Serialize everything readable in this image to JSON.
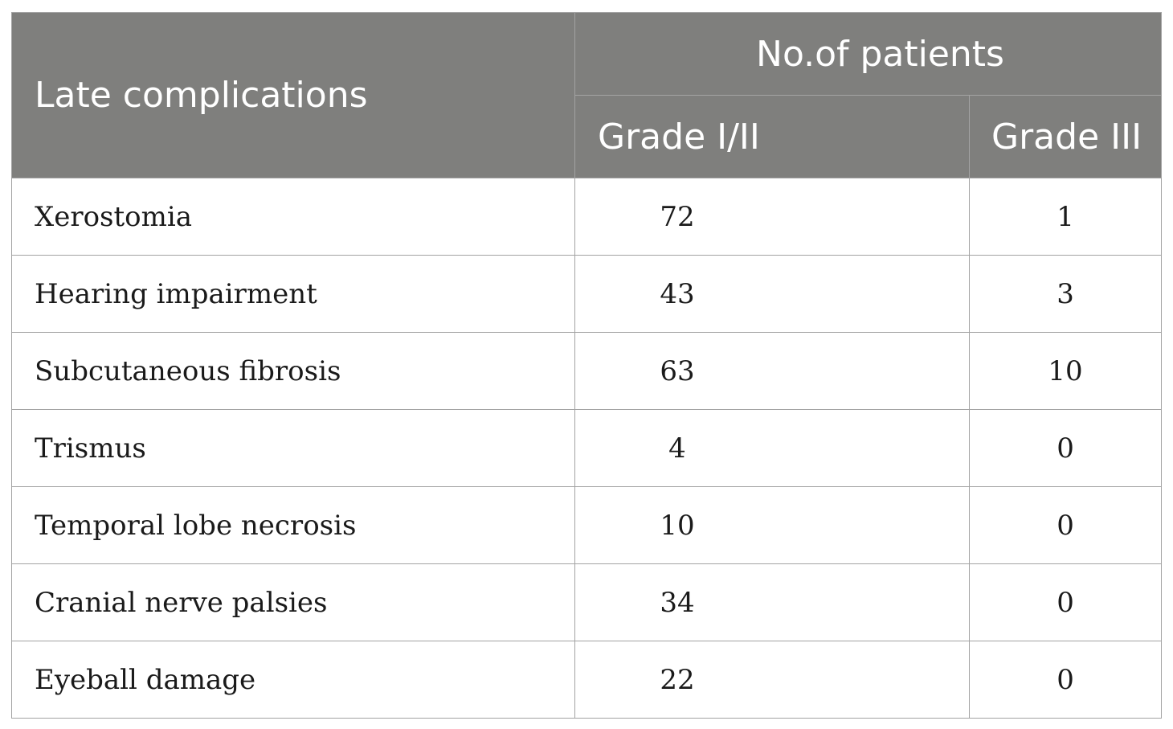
{
  "table": {
    "header": {
      "col1": "Late complications",
      "group": "No.of patients",
      "col2": "Grade I/II",
      "col3": "Grade III"
    },
    "rows": [
      {
        "name": "Xerostomia",
        "grade12": "72",
        "grade3": "1"
      },
      {
        "name": "Hearing impairment",
        "grade12": "43",
        "grade3": "3"
      },
      {
        "name": "Subcutaneous fibrosis",
        "grade12": "63",
        "grade3": "10"
      },
      {
        "name": "Trismus",
        "grade12": "4",
        "grade3": "0"
      },
      {
        "name": "Temporal lobe necrosis",
        "grade12": "10",
        "grade3": "0"
      },
      {
        "name": "Cranial nerve palsies",
        "grade12": "34",
        "grade3": "0"
      },
      {
        "name": "Eyeball damage",
        "grade12": "22",
        "grade3": "0"
      }
    ]
  }
}
